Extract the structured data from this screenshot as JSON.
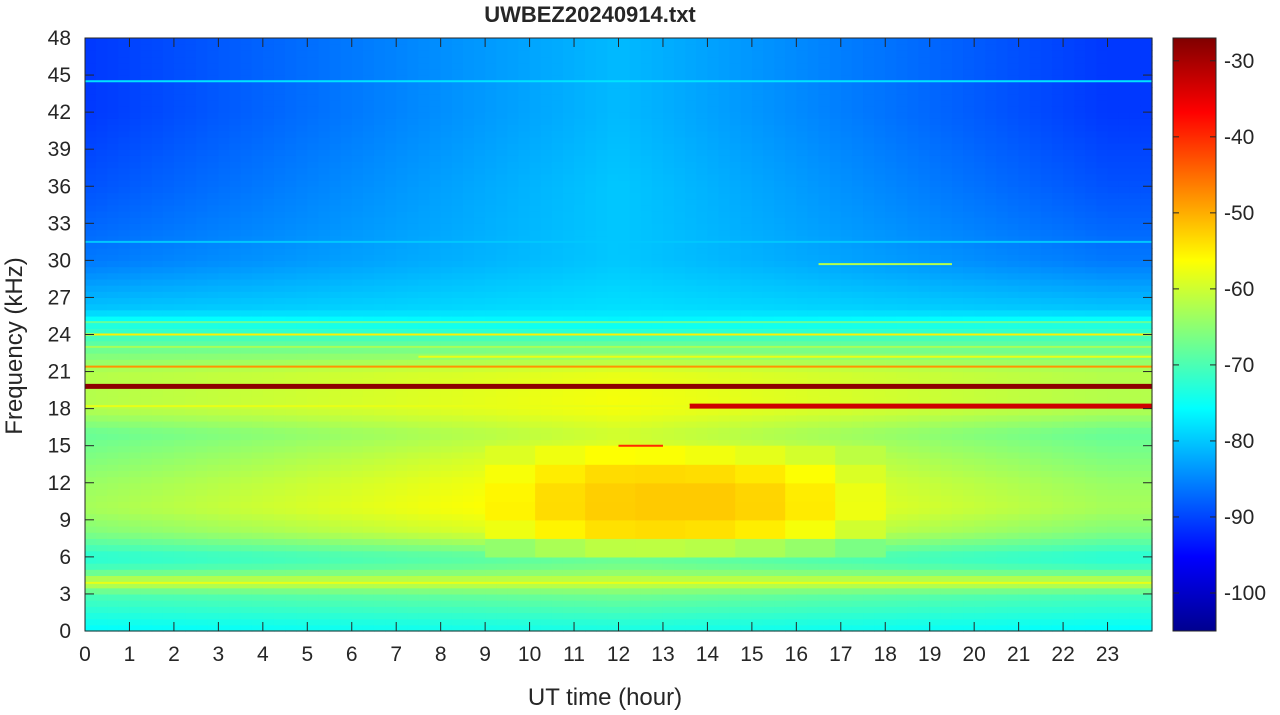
{
  "chart_data": {
    "type": "heatmap",
    "title": "UWBEZ20240914.txt",
    "xlabel": "UT time (hour)",
    "ylabel": "Frequency (kHz)",
    "xlim": [
      0,
      24
    ],
    "ylim": [
      0,
      48
    ],
    "x_ticks": [
      0,
      1,
      2,
      3,
      4,
      5,
      6,
      7,
      8,
      9,
      10,
      11,
      12,
      13,
      14,
      15,
      16,
      17,
      18,
      19,
      20,
      21,
      22,
      23
    ],
    "y_ticks": [
      0,
      3,
      6,
      9,
      12,
      15,
      18,
      21,
      24,
      27,
      30,
      33,
      36,
      39,
      42,
      45,
      48
    ],
    "colorbar": {
      "colormap": "jet",
      "clim": [
        -105,
        -27
      ],
      "ticks": [
        -100,
        -90,
        -80,
        -70,
        -60,
        -50,
        -40,
        -30
      ]
    },
    "grid": false,
    "background_profile": {
      "frequencies_khz": [
        0,
        1,
        3,
        4,
        5,
        6,
        8,
        10,
        12,
        14,
        16,
        18,
        19,
        21,
        23,
        25,
        26,
        30,
        36,
        42,
        48
      ],
      "level_db_by_time_hour": {
        "0": [
          -76,
          -74,
          -70,
          -60,
          -70,
          -73,
          -66,
          -63,
          -64,
          -66,
          -68,
          -62,
          -62,
          -62,
          -68,
          -74,
          -80,
          -86,
          -89,
          -91,
          -91
        ],
        "12": [
          -74,
          -72,
          -67,
          -60,
          -66,
          -68,
          -57,
          -54,
          -55,
          -57,
          -60,
          -57,
          -57,
          -58,
          -67,
          -76,
          -78,
          -80,
          -80,
          -81,
          -81
        ],
        "23": [
          -76,
          -74,
          -70,
          -60,
          -70,
          -73,
          -66,
          -63,
          -64,
          -66,
          -68,
          -62,
          -62,
          -62,
          -68,
          -74,
          -80,
          -86,
          -89,
          -91,
          -91
        ]
      }
    },
    "narrowband_lines": [
      {
        "freq_khz": 19.8,
        "start_hour": 0,
        "end_hour": 24,
        "level_db": -28
      },
      {
        "freq_khz": 18.2,
        "start_hour": 13.6,
        "end_hour": 24,
        "level_db": -33
      },
      {
        "freq_khz": 18.2,
        "start_hour": 0,
        "end_hour": 13.6,
        "level_db": -58
      },
      {
        "freq_khz": 21.4,
        "start_hour": 0,
        "end_hour": 24,
        "level_db": -48
      },
      {
        "freq_khz": 24.0,
        "start_hour": 0,
        "end_hour": 24,
        "level_db": -55
      },
      {
        "freq_khz": 25.0,
        "start_hour": 0,
        "end_hour": 24,
        "level_db": -68
      },
      {
        "freq_khz": 23.0,
        "start_hour": 0,
        "end_hour": 24,
        "level_db": -63
      },
      {
        "freq_khz": 22.2,
        "start_hour": 7.5,
        "end_hour": 24,
        "level_db": -58
      },
      {
        "freq_khz": 3.9,
        "start_hour": 0,
        "end_hour": 24,
        "level_db": -58
      },
      {
        "freq_khz": 15.0,
        "start_hour": 12.0,
        "end_hour": 13.0,
        "level_db": -40
      },
      {
        "freq_khz": 44.5,
        "start_hour": 0,
        "end_hour": 24,
        "level_db": -78
      },
      {
        "freq_khz": 31.5,
        "start_hour": 0,
        "end_hour": 24,
        "level_db": -80
      },
      {
        "freq_khz": 29.7,
        "start_hour": 16.5,
        "end_hour": 19.5,
        "level_db": -62
      }
    ],
    "features": [
      {
        "type": "broadband_enhancement",
        "start_hour": 9,
        "end_hour": 18,
        "freq_range_khz": [
          6,
          15
        ],
        "peak_level_db": -52
      }
    ]
  }
}
